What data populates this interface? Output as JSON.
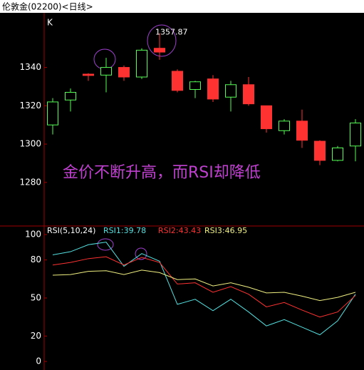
{
  "chart_data": [
    {
      "type": "candlestick",
      "title": "伦敦金(02200)<日线>",
      "label": "K",
      "annotation": "金价不断升高，而RSI却降低",
      "open": [
        1310,
        1323,
        1336.5,
        1336,
        1340,
        1335,
        1350,
        1338,
        1328.5,
        1334,
        1324.5,
        1331,
        1320,
        1307,
        1312,
        1301.5,
        1291.5,
        1299
      ],
      "close": [
        1322,
        1327,
        1335.8,
        1340,
        1335,
        1349,
        1348,
        1328,
        1332.5,
        1323.5,
        1331,
        1321,
        1308,
        1312,
        1302,
        1291.5,
        1298,
        1311
      ],
      "high": [
        1324,
        1329,
        1337,
        1345,
        1341,
        1350,
        1357.87,
        1339,
        1333,
        1336,
        1333,
        1335,
        1320,
        1313,
        1318,
        1302,
        1299,
        1313
      ],
      "low": [
        1305,
        1317,
        1333,
        1327,
        1333,
        1334,
        1344,
        1327,
        1324,
        1322,
        1317,
        1320,
        1306,
        1305,
        1298,
        1289,
        1291,
        1291
      ],
      "up_color": "#54fc54",
      "down_color": "#ff3232",
      "ylim": [
        1258,
        1367
      ],
      "yticks": [
        1280,
        1300,
        1320,
        1340
      ],
      "grid": false
    },
    {
      "type": "line",
      "title": "RSI(5,10,24)",
      "series": [
        {
          "name": "RSI1:39.78",
          "color": "#54e0e0",
          "values": [
            84,
            86.5,
            92,
            94,
            75,
            85,
            79,
            45,
            49,
            40,
            49,
            39,
            28,
            33,
            27,
            21,
            32,
            53
          ]
        },
        {
          "name": "RSI2:43.43",
          "color": "#ff3232",
          "values": [
            76,
            78,
            81,
            82.5,
            76,
            82,
            78,
            61,
            62,
            54.5,
            59,
            53,
            43,
            46.5,
            40.5,
            35,
            39,
            52
          ]
        },
        {
          "name": "RSI3:46.95",
          "color": "#f0f080",
          "values": [
            68,
            68.5,
            71,
            71.5,
            68.5,
            72,
            70,
            64.5,
            65,
            59.5,
            62,
            58.5,
            54,
            54.5,
            51.5,
            48,
            50.5,
            54.5
          ]
        }
      ],
      "ylim": [
        0,
        100
      ],
      "yticks": [
        0,
        20,
        50,
        80,
        100
      ],
      "grid": false
    }
  ]
}
